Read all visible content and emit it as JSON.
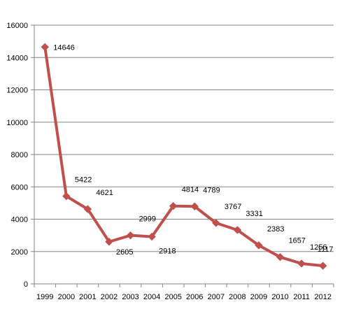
{
  "chart_data": {
    "type": "line",
    "title": "",
    "xlabel": "",
    "ylabel": "",
    "categories": [
      "1999",
      "2000",
      "2001",
      "2002",
      "2003",
      "2004",
      "2005",
      "2006",
      "2007",
      "2008",
      "2009",
      "2010",
      "2011",
      "2012"
    ],
    "series": [
      {
        "values": [
          14646,
          5422,
          4621,
          2605,
          2999,
          2918,
          4814,
          4789,
          3767,
          3331,
          2383,
          1657,
          1256,
          1117
        ],
        "color": "#C0504D",
        "marker": "diamond",
        "data_labels": [
          "14646",
          "5422",
          "4621",
          "2605",
          "2999",
          "2918",
          "4814",
          "4789",
          "3767",
          "3331",
          "2383",
          "1657",
          "1256",
          "1117"
        ]
      }
    ],
    "ylim": [
      0,
      16000
    ],
    "yticks": [
      0,
      2000,
      4000,
      6000,
      8000,
      10000,
      12000,
      14000,
      16000
    ],
    "ytick_labels": [
      "0",
      "2000",
      "4000",
      "6000",
      "8000",
      "10000",
      "12000",
      "14000",
      "16000"
    ],
    "grid": true,
    "gridline_color": "#868686",
    "legend": "none"
  }
}
